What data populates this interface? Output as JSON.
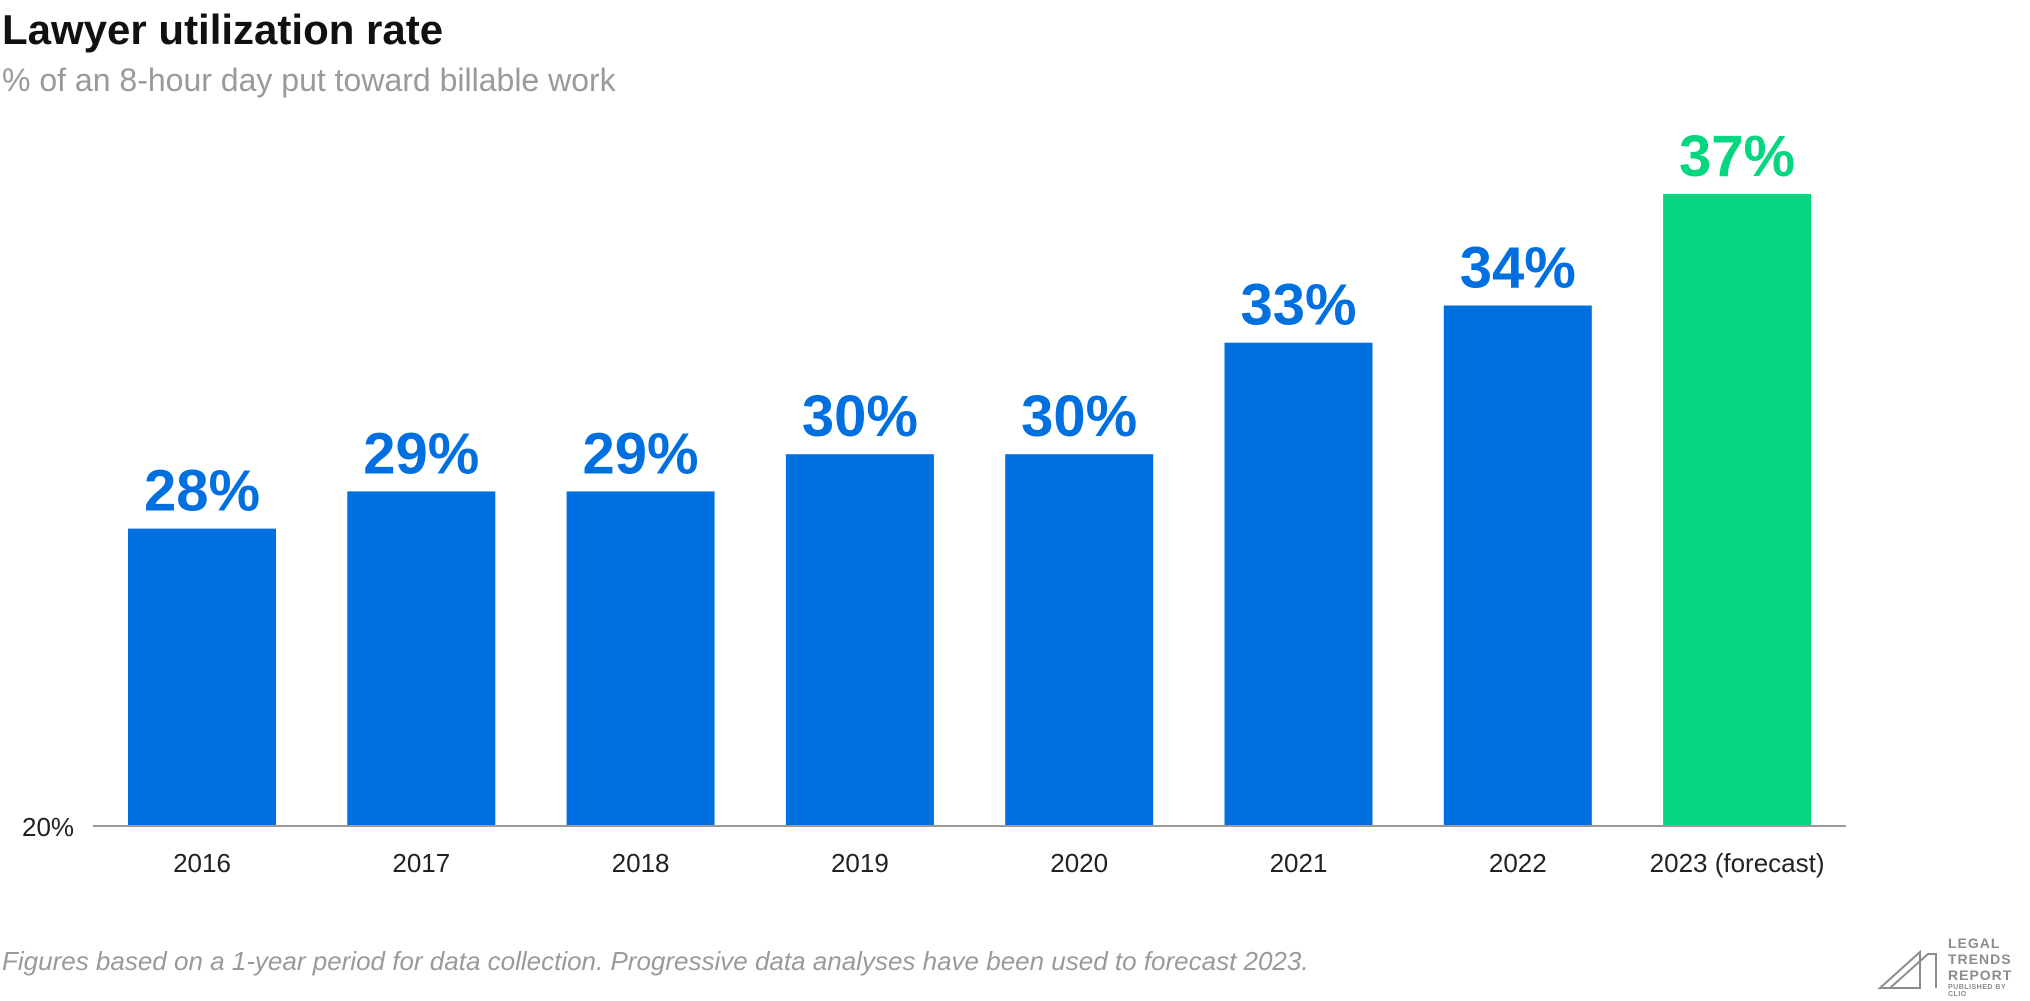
{
  "chart_data": {
    "type": "bar",
    "title": "Lawyer utilization rate",
    "subtitle": "% of an 8-hour day put toward billable work",
    "categories": [
      "2016",
      "2017",
      "2018",
      "2019",
      "2020",
      "2021",
      "2022",
      "2023 (forecast)"
    ],
    "values": [
      28,
      29,
      29,
      30,
      30,
      33,
      34,
      37
    ],
    "data_labels": [
      "28%",
      "29%",
      "29%",
      "30%",
      "30%",
      "33%",
      "34%",
      "37%"
    ],
    "xlabel": "",
    "ylabel": "",
    "ylim": [
      20,
      37
    ],
    "y_tick_labels": [
      "20%"
    ],
    "grid": false,
    "legend": "none",
    "colors": {
      "bar": "#0070E0",
      "highlight_bar": "#06D680",
      "highlight_category": "2023 (forecast)",
      "axis": "#9a9a9a"
    }
  },
  "footnote": "Figures based on a 1-year period for data collection. Progressive data analyses have been used to forecast 2023.",
  "logo": {
    "icon": "legal-trends-report-logo-icon",
    "lines": [
      "LEGAL",
      "TRENDS",
      "REPORT"
    ],
    "publisher": "PUBLISHED BY CLIO"
  }
}
